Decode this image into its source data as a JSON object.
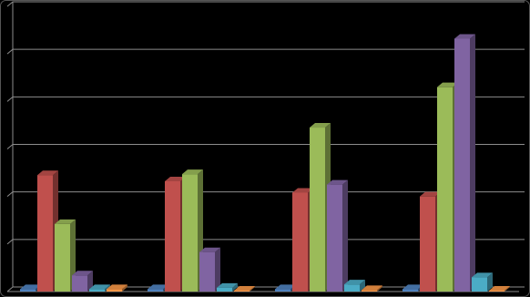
{
  "chart_data": {
    "type": "bar3d",
    "categories": [
      null,
      null,
      null,
      null
    ],
    "series": [
      {
        "color": "#4f81bd",
        "values": [
          0.05,
          0.05,
          0.05,
          0.05
        ]
      },
      {
        "color": "#c0504d",
        "values": [
          2.45,
          2.32,
          2.08,
          2.0
        ]
      },
      {
        "color": "#9bbb59",
        "values": [
          1.42,
          2.47,
          3.45,
          4.3
        ]
      },
      {
        "color": "#8064a2",
        "values": [
          0.34,
          0.83,
          2.25,
          5.32
        ]
      },
      {
        "color": "#4bacc6",
        "values": [
          0.05,
          0.08,
          0.15,
          0.3
        ]
      },
      {
        "color": "#f79646",
        "values": [
          0.05,
          0.02,
          0.03,
          0.02
        ]
      }
    ],
    "ylim": [
      0,
      6
    ],
    "yticks": [
      0,
      1,
      2,
      3,
      4,
      5,
      6
    ],
    "grid": true
  }
}
